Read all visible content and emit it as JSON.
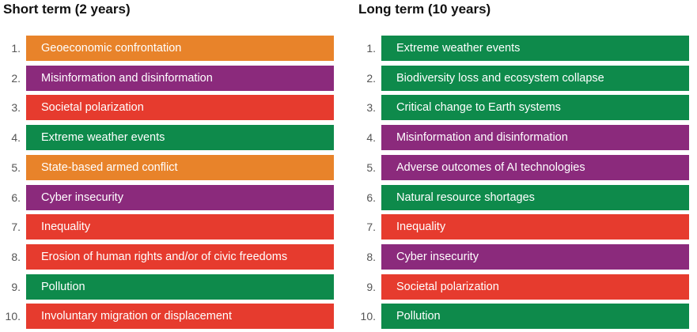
{
  "columns": [
    {
      "title": "Short term (2 years)",
      "items": [
        {
          "rank": "1.",
          "label": "Geoeconomic confrontation",
          "color": "#e8832a"
        },
        {
          "rank": "2.",
          "label": "Misinformation and disinformation",
          "color": "#8b2a7c"
        },
        {
          "rank": "3.",
          "label": "Societal polarization",
          "color": "#e63b2e"
        },
        {
          "rank": "4.",
          "label": "Extreme weather events",
          "color": "#0e8a4b"
        },
        {
          "rank": "5.",
          "label": "State-based armed conflict",
          "color": "#e8832a"
        },
        {
          "rank": "6.",
          "label": "Cyber insecurity",
          "color": "#8b2a7c"
        },
        {
          "rank": "7.",
          "label": "Inequality",
          "color": "#e63b2e"
        },
        {
          "rank": "8.",
          "label": "Erosion of human rights and/or of civic freedoms",
          "color": "#e63b2e"
        },
        {
          "rank": "9.",
          "label": "Pollution",
          "color": "#0e8a4b"
        },
        {
          "rank": "10.",
          "label": "Involuntary migration or displacement",
          "color": "#e63b2e"
        }
      ]
    },
    {
      "title": "Long term (10 years)",
      "items": [
        {
          "rank": "1.",
          "label": "Extreme weather events",
          "color": "#0e8a4b"
        },
        {
          "rank": "2.",
          "label": "Biodiversity loss and ecosystem collapse",
          "color": "#0e8a4b"
        },
        {
          "rank": "3.",
          "label": "Critical change to Earth systems",
          "color": "#0e8a4b"
        },
        {
          "rank": "4.",
          "label": "Misinformation and disinformation",
          "color": "#8b2a7c"
        },
        {
          "rank": "5.",
          "label": "Adverse outcomes of AI technologies",
          "color": "#8b2a7c"
        },
        {
          "rank": "6.",
          "label": "Natural resource shortages",
          "color": "#0e8a4b"
        },
        {
          "rank": "7.",
          "label": "Inequality",
          "color": "#e63b2e"
        },
        {
          "rank": "8.",
          "label": "Cyber insecurity",
          "color": "#8b2a7c"
        },
        {
          "rank": "9.",
          "label": "Societal polarization",
          "color": "#e63b2e"
        },
        {
          "rank": "10.",
          "label": "Pollution",
          "color": "#0e8a4b"
        }
      ]
    }
  ]
}
